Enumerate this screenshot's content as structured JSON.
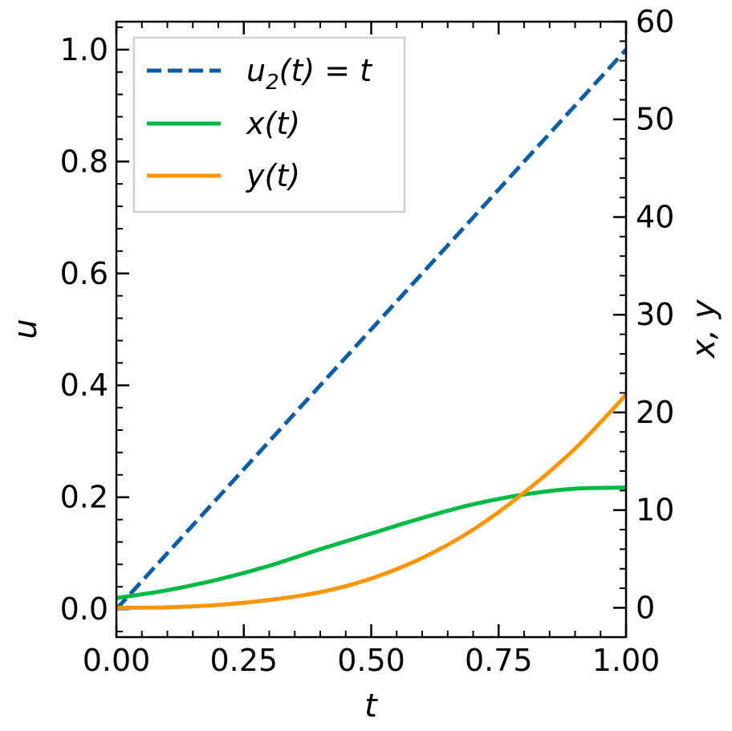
{
  "chart_data": {
    "type": "line",
    "xlabel": "t",
    "ylabel": "u",
    "y2label": "x, y",
    "xlim": [
      0,
      1
    ],
    "ylim": [
      -0.05,
      1.05
    ],
    "y2lim": [
      -3,
      60
    ],
    "x_ticks": [
      "0.00",
      "0.25",
      "0.50",
      "0.75",
      "1.00"
    ],
    "y_ticks": [
      "0.0",
      "0.2",
      "0.4",
      "0.6",
      "0.8",
      "1.0"
    ],
    "y2_ticks": [
      "0",
      "10",
      "20",
      "30",
      "40",
      "50",
      "60"
    ],
    "legend": {
      "position": "top-left"
    },
    "grid": false,
    "series": [
      {
        "name": "u2(t) = t",
        "axis": "left",
        "style": "dashed",
        "color": "#0c5da5",
        "x": [
          0,
          0.25,
          0.5,
          0.75,
          1.0
        ],
        "values": [
          0,
          0.25,
          0.5,
          0.75,
          1.0
        ]
      },
      {
        "name": "x(t)",
        "axis": "right",
        "style": "solid",
        "color": "#00b945",
        "x": [
          0,
          0.1,
          0.2,
          0.3,
          0.4,
          0.5,
          0.6,
          0.7,
          0.8,
          0.9,
          1.0
        ],
        "values": [
          1.0,
          1.8,
          2.9,
          4.3,
          6.0,
          7.6,
          9.2,
          10.6,
          11.6,
          12.2,
          12.3
        ]
      },
      {
        "name": "y(t)",
        "axis": "right",
        "style": "solid",
        "color": "#ff9500",
        "x": [
          0,
          0.1,
          0.2,
          0.3,
          0.4,
          0.5,
          0.6,
          0.7,
          0.8,
          0.9,
          1.0
        ],
        "values": [
          0,
          0.05,
          0.3,
          0.8,
          1.6,
          3.0,
          5.1,
          8.0,
          11.8,
          16.3,
          21.8
        ]
      }
    ]
  }
}
